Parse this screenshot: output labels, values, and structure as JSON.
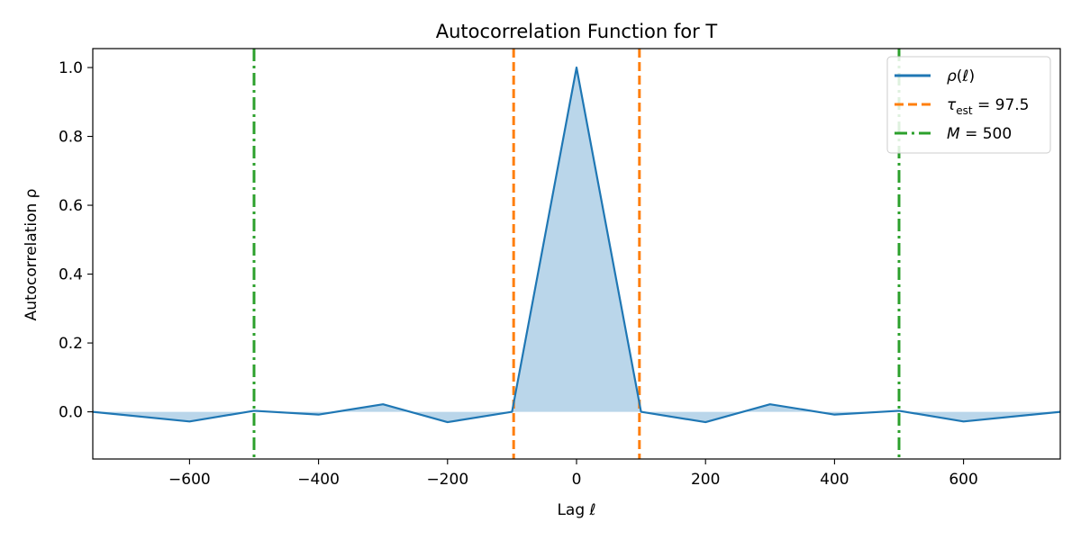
{
  "chart_data": {
    "type": "line",
    "title": "Autocorrelation Function for T",
    "xlabel": "Lag ℓ",
    "ylabel": "Autocorrelation ρ",
    "xlim": [
      -750,
      750
    ],
    "ylim": [
      -0.137,
      1.055
    ],
    "xticks": [
      -600,
      -400,
      -200,
      0,
      200,
      400,
      600
    ],
    "xtick_labels": [
      "−600",
      "−400",
      "−200",
      "0",
      "200",
      "400",
      "600"
    ],
    "yticks": [
      0.0,
      0.2,
      0.4,
      0.6,
      0.8,
      1.0
    ],
    "ytick_labels": [
      "0.0",
      "0.2",
      "0.4",
      "0.6",
      "0.8",
      "1.0"
    ],
    "grid": false,
    "legend_position": "top-right",
    "series": [
      {
        "name": "ρ(ℓ)",
        "kind": "line",
        "fill_to_zero": true,
        "color": "#1f77b4",
        "fill_color": "#bad6ea",
        "x": [
          -750,
          -600,
          -500,
          -400,
          -300,
          -200,
          -100,
          0,
          100,
          200,
          300,
          400,
          500,
          600,
          750
        ],
        "y": [
          0.0,
          -0.028,
          0.003,
          -0.008,
          0.022,
          -0.03,
          0.0,
          1.0,
          0.0,
          -0.03,
          0.022,
          -0.008,
          0.003,
          -0.028,
          0.0
        ]
      }
    ],
    "vlines": [
      {
        "name": "τ_est = 97.5",
        "legend_main": "τ",
        "legend_sub": "est",
        "legend_rest": " = 97.5",
        "x": [
          -97.5,
          97.5
        ],
        "color": "#ff7f0e",
        "style": "dashed"
      },
      {
        "name": "M = 500",
        "legend_main": "M",
        "legend_sub": "",
        "legend_rest": " = 500",
        "x": [
          -500,
          500
        ],
        "color": "#2ca02c",
        "style": "dashdot"
      }
    ]
  }
}
